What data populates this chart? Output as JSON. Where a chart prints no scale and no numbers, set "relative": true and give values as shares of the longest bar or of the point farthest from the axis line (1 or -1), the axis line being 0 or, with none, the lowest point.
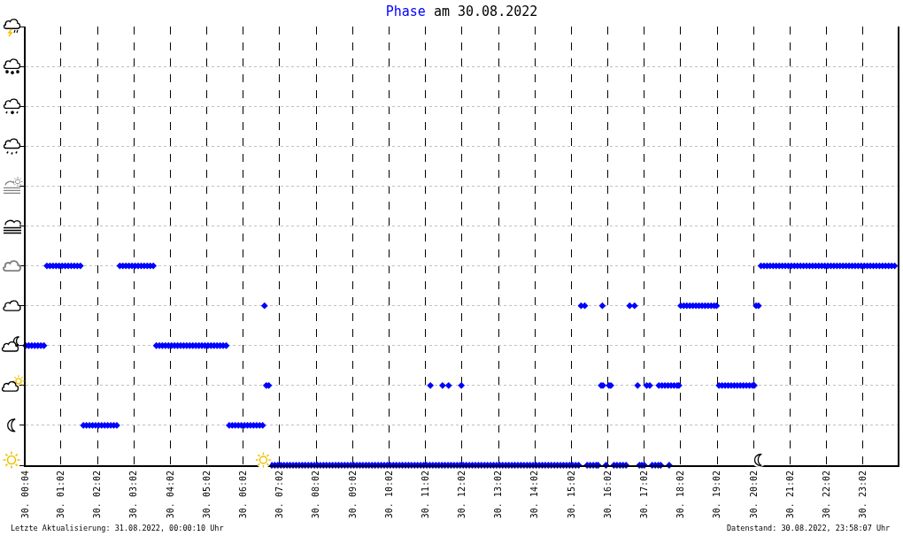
{
  "chart_data": {
    "type": "scatter",
    "title": "am 30.08.2022",
    "marker": "diamond",
    "grid": true,
    "relative": true,
    "xlim": [
      "2022-08-30T00:04",
      "2022-08-30T23:59"
    ],
    "xticks": [
      {
        "value": "2022-08-30T00:04",
        "label": "30. 00:04"
      },
      {
        "value": "2022-08-30T01:02",
        "label": "30. 01:02"
      },
      {
        "value": "2022-08-30T02:02",
        "label": "30. 02:02"
      },
      {
        "value": "2022-08-30T03:02",
        "label": "30. 03:02"
      },
      {
        "value": "2022-08-30T04:02",
        "label": "30. 04:02"
      },
      {
        "value": "2022-08-30T05:02",
        "label": "30. 05:02"
      },
      {
        "value": "2022-08-30T06:02",
        "label": "30. 06:02"
      },
      {
        "value": "2022-08-30T07:02",
        "label": "30. 07:02"
      },
      {
        "value": "2022-08-30T08:02",
        "label": "30. 08:02"
      },
      {
        "value": "2022-08-30T09:02",
        "label": "30. 09:02"
      },
      {
        "value": "2022-08-30T10:02",
        "label": "30. 10:02"
      },
      {
        "value": "2022-08-30T11:02",
        "label": "30. 11:02"
      },
      {
        "value": "2022-08-30T12:02",
        "label": "30. 12:02"
      },
      {
        "value": "2022-08-30T13:02",
        "label": "30. 13:02"
      },
      {
        "value": "2022-08-30T14:02",
        "label": "30. 14:02"
      },
      {
        "value": "2022-08-30T15:02",
        "label": "30. 15:02"
      },
      {
        "value": "2022-08-30T16:02",
        "label": "30. 16:02"
      },
      {
        "value": "2022-08-30T17:02",
        "label": "30. 17:02"
      },
      {
        "value": "2022-08-30T18:02",
        "label": "30. 18:02"
      },
      {
        "value": "2022-08-30T19:02",
        "label": "30. 19:02"
      },
      {
        "value": "2022-08-30T20:02",
        "label": "30. 20:02"
      },
      {
        "value": "2022-08-30T21:02",
        "label": "30. 21:02"
      },
      {
        "value": "2022-08-30T22:02",
        "label": "30. 22:02"
      },
      {
        "value": "2022-08-30T23:02",
        "label": "30. 23:02"
      }
    ],
    "annotations": [
      "Letzte Aktualisierung: 31.08.2022, 00:00:10 Uhr",
      "Datenstand: 30.08.2022, 23:58:07 Uhr"
    ],
    "series": [
      {
        "name": "Phase",
        "color": "#0000ff",
        "x": [
          "2022-08-30T00:04",
          "2022-08-30T00:09",
          "2022-08-30T00:14",
          "2022-08-30T00:19",
          "2022-08-30T00:24",
          "2022-08-30T00:29",
          "2022-08-30T00:34",
          "2022-08-30T00:39",
          "2022-08-30T00:44",
          "2022-08-30T00:49",
          "2022-08-30T00:54",
          "2022-08-30T00:59",
          "2022-08-30T01:04",
          "2022-08-30T01:09",
          "2022-08-30T01:14",
          "2022-08-30T01:19",
          "2022-08-30T01:24",
          "2022-08-30T01:29",
          "2022-08-30T01:34",
          "2022-08-30T01:39",
          "2022-08-30T01:44",
          "2022-08-30T01:49",
          "2022-08-30T01:54",
          "2022-08-30T01:59",
          "2022-08-30T02:04",
          "2022-08-30T02:09",
          "2022-08-30T02:14",
          "2022-08-30T02:19",
          "2022-08-30T02:24",
          "2022-08-30T02:29",
          "2022-08-30T02:34",
          "2022-08-30T02:39",
          "2022-08-30T02:44",
          "2022-08-30T02:49",
          "2022-08-30T02:54",
          "2022-08-30T02:59",
          "2022-08-30T03:04",
          "2022-08-30T03:09",
          "2022-08-30T03:14",
          "2022-08-30T03:19",
          "2022-08-30T03:24",
          "2022-08-30T03:29",
          "2022-08-30T03:34",
          "2022-08-30T03:39",
          "2022-08-30T03:44",
          "2022-08-30T03:49",
          "2022-08-30T03:54",
          "2022-08-30T03:59",
          "2022-08-30T04:04",
          "2022-08-30T04:09",
          "2022-08-30T04:14",
          "2022-08-30T04:19",
          "2022-08-30T04:24",
          "2022-08-30T04:29",
          "2022-08-30T04:34",
          "2022-08-30T04:39",
          "2022-08-30T04:44",
          "2022-08-30T04:49",
          "2022-08-30T04:54",
          "2022-08-30T04:59",
          "2022-08-30T05:04",
          "2022-08-30T05:09",
          "2022-08-30T05:14",
          "2022-08-30T05:19",
          "2022-08-30T05:24",
          "2022-08-30T05:29",
          "2022-08-30T05:34",
          "2022-08-30T05:39",
          "2022-08-30T05:44",
          "2022-08-30T05:49",
          "2022-08-30T05:54",
          "2022-08-30T05:59",
          "2022-08-30T06:04",
          "2022-08-30T06:09",
          "2022-08-30T06:14",
          "2022-08-30T06:19",
          "2022-08-30T06:24",
          "2022-08-30T06:29",
          "2022-08-30T06:34",
          "2022-08-30T06:37",
          "2022-08-30T06:40",
          "2022-08-30T06:44",
          "2022-08-30T06:49",
          "2022-08-30T06:54",
          "2022-08-30T06:59",
          "2022-08-30T07:04",
          "2022-08-30T07:09",
          "2022-08-30T07:14",
          "2022-08-30T07:19",
          "2022-08-30T07:24",
          "2022-08-30T07:29",
          "2022-08-30T07:34",
          "2022-08-30T07:39",
          "2022-08-30T07:44",
          "2022-08-30T07:49",
          "2022-08-30T07:54",
          "2022-08-30T07:59",
          "2022-08-30T08:04",
          "2022-08-30T08:09",
          "2022-08-30T08:14",
          "2022-08-30T08:19",
          "2022-08-30T08:24",
          "2022-08-30T08:29",
          "2022-08-30T08:34",
          "2022-08-30T08:39",
          "2022-08-30T08:44",
          "2022-08-30T08:49",
          "2022-08-30T08:54",
          "2022-08-30T08:59",
          "2022-08-30T09:04",
          "2022-08-30T09:09",
          "2022-08-30T09:14",
          "2022-08-30T09:19",
          "2022-08-30T09:24",
          "2022-08-30T09:29",
          "2022-08-30T09:34",
          "2022-08-30T09:39",
          "2022-08-30T09:44",
          "2022-08-30T09:49",
          "2022-08-30T09:54",
          "2022-08-30T09:59",
          "2022-08-30T10:04",
          "2022-08-30T10:09",
          "2022-08-30T10:14",
          "2022-08-30T10:19",
          "2022-08-30T10:24",
          "2022-08-30T10:29",
          "2022-08-30T10:34",
          "2022-08-30T10:39",
          "2022-08-30T10:44",
          "2022-08-30T10:49",
          "2022-08-30T10:54",
          "2022-08-30T10:59",
          "2022-08-30T11:04",
          "2022-08-30T11:09",
          "2022-08-30T11:10",
          "2022-08-30T11:14",
          "2022-08-30T11:19",
          "2022-08-30T11:24",
          "2022-08-30T11:29",
          "2022-08-30T11:30",
          "2022-08-30T11:34",
          "2022-08-30T11:39",
          "2022-08-30T11:40",
          "2022-08-30T11:44",
          "2022-08-30T11:49",
          "2022-08-30T11:54",
          "2022-08-30T11:59",
          "2022-08-30T12:01",
          "2022-08-30T12:04",
          "2022-08-30T12:09",
          "2022-08-30T12:14",
          "2022-08-30T12:19",
          "2022-08-30T12:24",
          "2022-08-30T12:29",
          "2022-08-30T12:34",
          "2022-08-30T12:39",
          "2022-08-30T12:44",
          "2022-08-30T12:49",
          "2022-08-30T12:54",
          "2022-08-30T12:59",
          "2022-08-30T13:04",
          "2022-08-30T13:09",
          "2022-08-30T13:14",
          "2022-08-30T13:19",
          "2022-08-30T13:24",
          "2022-08-30T13:29",
          "2022-08-30T13:34",
          "2022-08-30T13:39",
          "2022-08-30T13:44",
          "2022-08-30T13:49",
          "2022-08-30T13:54",
          "2022-08-30T13:59",
          "2022-08-30T14:04",
          "2022-08-30T14:09",
          "2022-08-30T14:14",
          "2022-08-30T14:19",
          "2022-08-30T14:24",
          "2022-08-30T14:29",
          "2022-08-30T14:34",
          "2022-08-30T14:39",
          "2022-08-30T14:44",
          "2022-08-30T14:49",
          "2022-08-30T14:54",
          "2022-08-30T14:59",
          "2022-08-30T15:04",
          "2022-08-30T15:09",
          "2022-08-30T15:14",
          "2022-08-30T15:18",
          "2022-08-30T15:24",
          "2022-08-30T15:28",
          "2022-08-30T15:33",
          "2022-08-30T15:38",
          "2022-08-30T15:43",
          "2022-08-30T15:46",
          "2022-08-30T15:51",
          "2022-08-30T15:53",
          "2022-08-30T15:54",
          "2022-08-30T15:59",
          "2022-08-30T16:04",
          "2022-08-30T16:07",
          "2022-08-30T16:12",
          "2022-08-30T16:17",
          "2022-08-30T16:22",
          "2022-08-30T16:27",
          "2022-08-30T16:32",
          "2022-08-30T16:38",
          "2022-08-30T16:46",
          "2022-08-30T16:51",
          "2022-08-30T16:54",
          "2022-08-30T16:58",
          "2022-08-30T17:02",
          "2022-08-30T17:06",
          "2022-08-30T17:11",
          "2022-08-30T17:15",
          "2022-08-30T17:20",
          "2022-08-30T17:25",
          "2022-08-30T17:26",
          "2022-08-30T17:29",
          "2022-08-30T17:31",
          "2022-08-30T17:36",
          "2022-08-30T17:41",
          "2022-08-30T17:43",
          "2022-08-30T17:46",
          "2022-08-30T17:51",
          "2022-08-30T17:56",
          "2022-08-30T17:59",
          "2022-08-30T18:02",
          "2022-08-30T18:07",
          "2022-08-30T18:12",
          "2022-08-30T18:17",
          "2022-08-30T18:22",
          "2022-08-30T18:27",
          "2022-08-30T18:32",
          "2022-08-30T18:37",
          "2022-08-30T18:42",
          "2022-08-30T18:47",
          "2022-08-30T18:52",
          "2022-08-30T18:57",
          "2022-08-30T19:01",
          "2022-08-30T19:05",
          "2022-08-30T19:10",
          "2022-08-30T19:15",
          "2022-08-30T19:20",
          "2022-08-30T19:25",
          "2022-08-30T19:30",
          "2022-08-30T19:35",
          "2022-08-30T19:40",
          "2022-08-30T19:45",
          "2022-08-30T19:50",
          "2022-08-30T19:55",
          "2022-08-30T20:00",
          "2022-08-30T20:03",
          "2022-08-30T20:06",
          "2022-08-30T20:10",
          "2022-08-30T20:14",
          "2022-08-30T20:19",
          "2022-08-30T20:24",
          "2022-08-30T20:29",
          "2022-08-30T20:34",
          "2022-08-30T20:39",
          "2022-08-30T20:44",
          "2022-08-30T20:49",
          "2022-08-30T20:54",
          "2022-08-30T20:59",
          "2022-08-30T21:04",
          "2022-08-30T21:09",
          "2022-08-30T21:14",
          "2022-08-30T21:19",
          "2022-08-30T21:24",
          "2022-08-30T21:29",
          "2022-08-30T21:34",
          "2022-08-30T21:39",
          "2022-08-30T21:44",
          "2022-08-30T21:49",
          "2022-08-30T21:54",
          "2022-08-30T21:59",
          "2022-08-30T22:04",
          "2022-08-30T22:09",
          "2022-08-30T22:14",
          "2022-08-30T22:19",
          "2022-08-30T22:24",
          "2022-08-30T22:29",
          "2022-08-30T22:34",
          "2022-08-30T22:39",
          "2022-08-30T22:44",
          "2022-08-30T22:49",
          "2022-08-30T22:54",
          "2022-08-30T22:59",
          "2022-08-30T23:04",
          "2022-08-30T23:09",
          "2022-08-30T23:14",
          "2022-08-30T23:19",
          "2022-08-30T23:24",
          "2022-08-30T23:29",
          "2022-08-30T23:34",
          "2022-08-30T23:39",
          "2022-08-30T23:44",
          "2022-08-30T23:49",
          "2022-08-30T23:54"
        ],
        "values": [
          0.6,
          0.6,
          0.6,
          0.6,
          0.6,
          0.6,
          0.6,
          1,
          1,
          1,
          1,
          1,
          1,
          1,
          1,
          1,
          1,
          1,
          1,
          0.2,
          0.2,
          0.2,
          0.2,
          0.2,
          0.2,
          0.2,
          0.2,
          0.2,
          0.2,
          0.2,
          0.2,
          1,
          1,
          1,
          1,
          1,
          1,
          1,
          1,
          1,
          1,
          1,
          1,
          0.6,
          0.6,
          0.6,
          0.6,
          0.6,
          0.6,
          0.6,
          0.6,
          0.6,
          0.6,
          0.6,
          0.6,
          0.6,
          0.6,
          0.6,
          0.6,
          0.6,
          0.6,
          0.6,
          0.6,
          0.6,
          0.6,
          0.6,
          0.6,
          0.2,
          0.2,
          0.2,
          0.2,
          0.2,
          0.2,
          0.2,
          0.2,
          0.2,
          0.2,
          0.2,
          0.2,
          0.8,
          0.4,
          0.4,
          0,
          0,
          0,
          0,
          0,
          0,
          0,
          0,
          0,
          0,
          0,
          0,
          0,
          0,
          0,
          0,
          0,
          0,
          0,
          0,
          0,
          0,
          0,
          0,
          0,
          0,
          0,
          0,
          0,
          0,
          0,
          0,
          0,
          0,
          0,
          0,
          0,
          0,
          0,
          0,
          0,
          0,
          0,
          0,
          0,
          0,
          0,
          0,
          0,
          0,
          0,
          0,
          0,
          0.4,
          0,
          0,
          0,
          0,
          0.4,
          0,
          0,
          0.4,
          0,
          0,
          0,
          0,
          0.4,
          0,
          0,
          0,
          0,
          0,
          0,
          0,
          0,
          0,
          0,
          0,
          0,
          0,
          0,
          0,
          0,
          0,
          0,
          0,
          0,
          0,
          0,
          0,
          0,
          0,
          0,
          0,
          0,
          0,
          0,
          0,
          0,
          0,
          0,
          0,
          0,
          0,
          0,
          0,
          0.8,
          0.8,
          0,
          0,
          0,
          0,
          0,
          0.4,
          0.8,
          0.4,
          0,
          0.4,
          0.4,
          0,
          0,
          0,
          0,
          0,
          0.8,
          0.8,
          0.4,
          0,
          0,
          0,
          0.4,
          0.4,
          0,
          0,
          0,
          0.4,
          0,
          0.4,
          0.4,
          0.4,
          0,
          0.4,
          0.4,
          0.4,
          0.4,
          0.8,
          0.8,
          0.8,
          0.8,
          0.8,
          0.8,
          0.8,
          0.8,
          0.8,
          0.8,
          0.8,
          0.8,
          0.8,
          0.4,
          0.4,
          0.4,
          0.4,
          0.4,
          0.4,
          0.4,
          0.4,
          0.4,
          0.4,
          0.4,
          0.4,
          0.4,
          0.8,
          0.8,
          1,
          1,
          1,
          1,
          1,
          1,
          1,
          1,
          1,
          1,
          1,
          1,
          1,
          1,
          1,
          1,
          1,
          1,
          1,
          1,
          1,
          1,
          1,
          1,
          1,
          1,
          1,
          1,
          1,
          1,
          1,
          1,
          1,
          1,
          1,
          1,
          1,
          1,
          1,
          1,
          1,
          1,
          1,
          1,
          1
        ]
      }
    ]
  }
}
